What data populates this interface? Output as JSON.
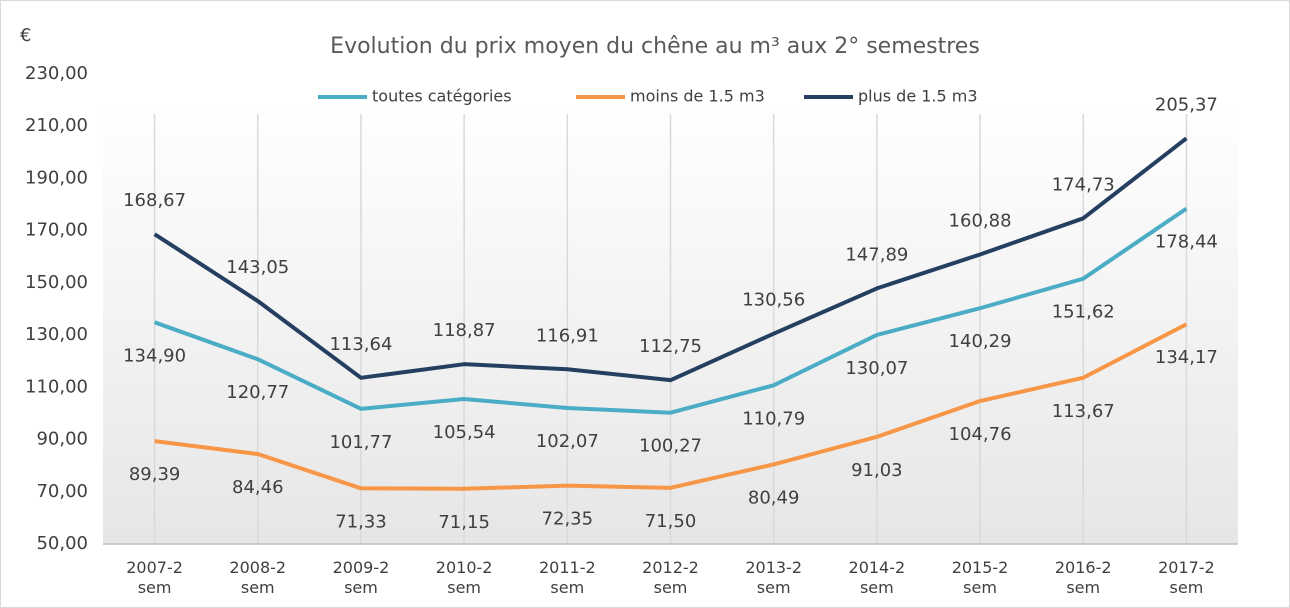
{
  "chart_data": {
    "type": "line",
    "title": "Evolution du prix moyen du chêne au m³ aux 2° semestres",
    "y_label": "€",
    "categories": [
      "2007-2 sem",
      "2008-2 sem",
      "2009-2 sem",
      "2010-2 sem",
      "2011-2 sem",
      "2012-2 sem",
      "2013-2 sem",
      "2014-2 sem",
      "2015-2 sem",
      "2016-2 sem",
      "2017-2 sem"
    ],
    "series": [
      {
        "name": "toutes catégories",
        "color": "#4bacc6",
        "values": [
          134.9,
          120.77,
          101.77,
          105.54,
          102.07,
          100.27,
          110.79,
          130.07,
          140.29,
          151.62,
          178.44
        ],
        "value_labels": [
          "134,90",
          "120,77",
          "101,77",
          "105,54",
          "102,07",
          "100,27",
          "110,79",
          "130,07",
          "140,29",
          "151,62",
          "178,44"
        ],
        "label_position": "below"
      },
      {
        "name": "moins de 1.5 m3",
        "color": "#f79646",
        "values": [
          89.39,
          84.46,
          71.33,
          71.15,
          72.35,
          71.5,
          80.49,
          91.03,
          104.76,
          113.67,
          134.17
        ],
        "value_labels": [
          "89,39",
          "84,46",
          "71,33",
          "71,15",
          "72,35",
          "71,50",
          "80,49",
          "91,03",
          "104,76",
          "113,67",
          "134,17"
        ],
        "label_position": "below"
      },
      {
        "name": "plus de 1.5 m3",
        "color": "#243f60",
        "values": [
          168.67,
          143.05,
          113.64,
          118.87,
          116.91,
          112.75,
          130.56,
          147.89,
          160.88,
          174.73,
          205.37
        ],
        "value_labels": [
          "168,67",
          "143,05",
          "113,64",
          "118,87",
          "116,91",
          "112,75",
          "130,56",
          "147,89",
          "160,88",
          "174,73",
          "205,37"
        ],
        "label_position": "above"
      }
    ],
    "ylim": [
      50,
      230
    ],
    "yticks": [
      {
        "value": 50,
        "label": "50,00"
      },
      {
        "value": 70,
        "label": "70,00"
      },
      {
        "value": 90,
        "label": "90,00"
      },
      {
        "value": 110,
        "label": "110,00"
      },
      {
        "value": 130,
        "label": "130,00"
      },
      {
        "value": 150,
        "label": "150,00"
      },
      {
        "value": 170,
        "label": "170,00"
      },
      {
        "value": 190,
        "label": "190,00"
      },
      {
        "value": 210,
        "label": "210,00"
      },
      {
        "value": 230,
        "label": "230,00"
      }
    ],
    "grid": "x",
    "legend": "top"
  }
}
